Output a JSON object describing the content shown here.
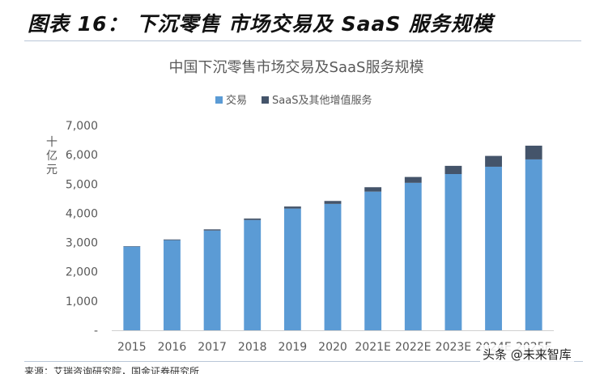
{
  "figure": {
    "title": "图表 16： 下沉零售 市场交易及 SaaS 服务规模",
    "source": "来源：艾瑞咨询研究院，国金证券研究所",
    "watermark": "头条 @未来智库"
  },
  "chart_data": {
    "type": "bar",
    "stacked": true,
    "title": "中国下沉零售市场交易及SaaS服务规模",
    "ylabel": "十亿元",
    "xlabel": "",
    "categories": [
      "2015",
      "2016",
      "2017",
      "2018",
      "2019",
      "2020",
      "2021E",
      "2022E",
      "2023E",
      "2024E",
      "2025E"
    ],
    "series": [
      {
        "name": "交易",
        "color": "#5b9bd5",
        "values": [
          2860,
          3080,
          3410,
          3770,
          4160,
          4320,
          4740,
          5040,
          5340,
          5590,
          5840
        ]
      },
      {
        "name": "SaaS及其他增值服务",
        "color": "#44546a",
        "values": [
          15,
          25,
          40,
          50,
          70,
          100,
          150,
          200,
          280,
          370,
          470
        ]
      }
    ],
    "ylim": [
      0,
      7000
    ],
    "yticks": [
      0,
      1000,
      2000,
      3000,
      4000,
      5000,
      6000,
      7000
    ],
    "ytick_labels": [
      "-",
      "1,000",
      "2,000",
      "3,000",
      "4,000",
      "5,000",
      "6,000",
      "7,000"
    ],
    "grid": false,
    "legend": "top-center"
  }
}
